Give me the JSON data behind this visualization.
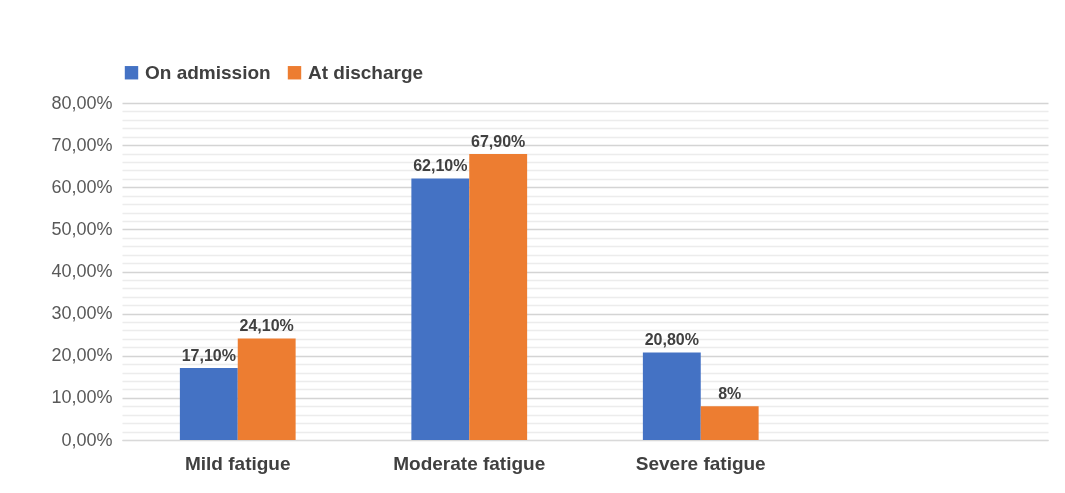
{
  "chart_data": {
    "type": "bar",
    "categories": [
      "Mild fatigue",
      "Moderate fatigue",
      "Severe fatigue",
      null
    ],
    "series": [
      {
        "name": "On admission",
        "color": "#4472c4",
        "values": [
          17.1,
          62.1,
          20.8,
          null
        ],
        "value_labels": [
          "17,10%",
          "62,10%",
          "20,80%",
          null
        ]
      },
      {
        "name": "At discharge",
        "color": "#ed7d31",
        "values": [
          24.1,
          67.9,
          8,
          null
        ],
        "value_labels": [
          "24,10%",
          "67,90%",
          "8%",
          null
        ]
      }
    ],
    "ylim": [
      0,
      80
    ],
    "yticks": [
      {
        "value": 0,
        "label": "0,00%"
      },
      {
        "value": 2,
        "label": null
      },
      {
        "value": 4,
        "label": null
      },
      {
        "value": 6,
        "label": null
      },
      {
        "value": 8,
        "label": null
      },
      {
        "value": 10,
        "label": "10,00%"
      },
      {
        "value": 12,
        "label": null
      },
      {
        "value": 14,
        "label": null
      },
      {
        "value": 16,
        "label": null
      },
      {
        "value": 18,
        "label": null
      },
      {
        "value": 20,
        "label": "20,00%"
      },
      {
        "value": 22,
        "label": null
      },
      {
        "value": 24,
        "label": null
      },
      {
        "value": 26,
        "label": null
      },
      {
        "value": 28,
        "label": null
      },
      {
        "value": 30,
        "label": "30,00%"
      },
      {
        "value": 32,
        "label": null
      },
      {
        "value": 34,
        "label": null
      },
      {
        "value": 36,
        "label": null
      },
      {
        "value": 38,
        "label": null
      },
      {
        "value": 40,
        "label": "40,00%"
      },
      {
        "value": 42,
        "label": null
      },
      {
        "value": 44,
        "label": null
      },
      {
        "value": 46,
        "label": null
      },
      {
        "value": 48,
        "label": null
      },
      {
        "value": 50,
        "label": "50,00%"
      },
      {
        "value": 52,
        "label": null
      },
      {
        "value": 54,
        "label": null
      },
      {
        "value": 56,
        "label": null
      },
      {
        "value": 58,
        "label": null
      },
      {
        "value": 60,
        "label": "60,00%"
      },
      {
        "value": 62,
        "label": null
      },
      {
        "value": 64,
        "label": null
      },
      {
        "value": 66,
        "label": null
      },
      {
        "value": 68,
        "label": null
      },
      {
        "value": 70,
        "label": "70,00%"
      },
      {
        "value": 72,
        "label": null
      },
      {
        "value": 74,
        "label": null
      },
      {
        "value": 76,
        "label": null
      },
      {
        "value": 78,
        "label": null
      },
      {
        "value": 80,
        "label": "80,00%"
      }
    ],
    "grid": "y",
    "legend": "top"
  }
}
